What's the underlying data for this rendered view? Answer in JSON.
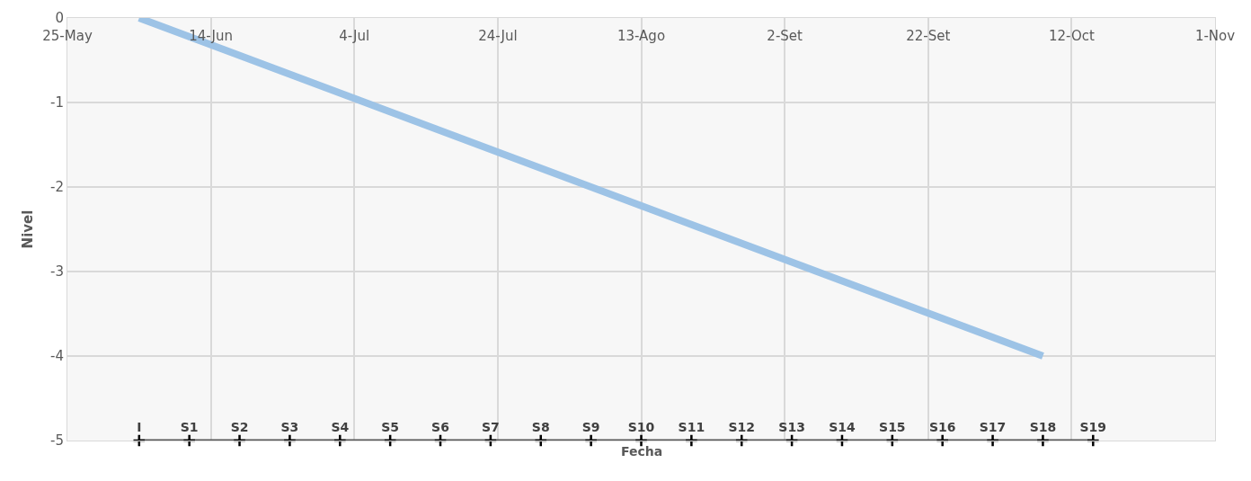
{
  "chart_data": {
    "type": "line",
    "xlabel": "Fecha",
    "ylabel": "Nivel",
    "xlim": [
      "--05-25",
      "--11-01"
    ],
    "xticks": [
      {
        "value": "--05-25",
        "label": "25-May"
      },
      {
        "value": "--06-14",
        "label": "14-Jun"
      },
      {
        "value": "--07-04",
        "label": "4-Jul"
      },
      {
        "value": "--07-24",
        "label": "24-Jul"
      },
      {
        "value": "--08-13",
        "label": "13-Ago"
      },
      {
        "value": "--09-02",
        "label": "2-Set"
      },
      {
        "value": "--09-22",
        "label": "22-Set"
      },
      {
        "value": "--10-12",
        "label": "12-Oct"
      },
      {
        "value": "--11-01",
        "label": "1-Nov"
      }
    ],
    "ylim": [
      -5,
      0
    ],
    "yticks": [
      -5,
      -4,
      -3,
      -2,
      -1,
      0
    ],
    "grid": true,
    "series": [
      {
        "color": "#9dc3e6",
        "marker": "none",
        "x": [
          "--06-04",
          "--10-08"
        ],
        "values": [
          0,
          -4
        ]
      },
      {
        "color": "#595959",
        "marker": "cross",
        "x": [
          "--06-04",
          "--06-11",
          "--06-18",
          "--06-25",
          "--07-02",
          "--07-09",
          "--07-16",
          "--07-23",
          "--07-30",
          "--08-06",
          "--08-13",
          "--08-20",
          "--08-27",
          "--09-03",
          "--09-10",
          "--09-17",
          "--09-24",
          "--10-01",
          "--10-08",
          "--10-15"
        ],
        "values": [
          -5,
          -5,
          -5,
          -5,
          -5,
          -5,
          -5,
          -5,
          -5,
          -5,
          -5,
          -5,
          -5,
          -5,
          -5,
          -5,
          -5,
          -5,
          -5,
          -5
        ],
        "value_labels": [
          "I",
          "S1",
          "S2",
          "S3",
          "S4",
          "S5",
          "S6",
          "S7",
          "S8",
          "S9",
          "S10",
          "S11",
          "S12",
          "S13",
          "S14",
          "S15",
          "S16",
          "S17",
          "S18",
          "S19"
        ]
      }
    ]
  }
}
